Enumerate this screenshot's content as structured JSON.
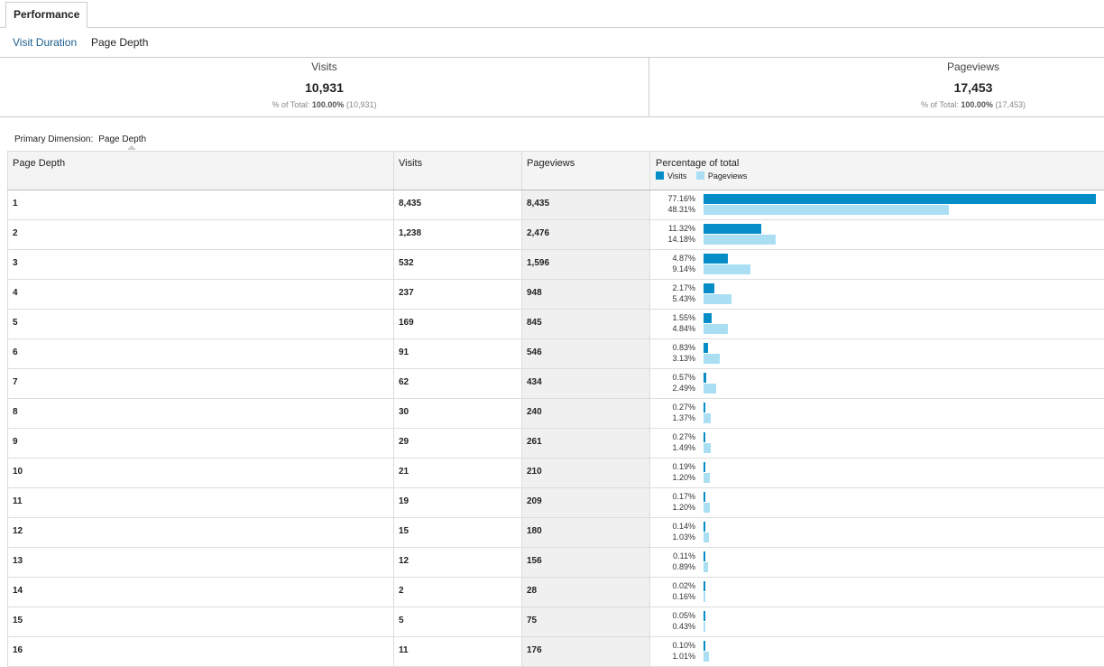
{
  "tab": {
    "label": "Performance"
  },
  "subnav": {
    "items": [
      "Visit Duration",
      "Page Depth"
    ]
  },
  "summary": [
    {
      "label": "Visits",
      "value": "10,931",
      "pct_prefix": "% of Total: ",
      "pct": "100.00%",
      "total": "(10,931)"
    },
    {
      "label": "Pageviews",
      "value": "17,453",
      "pct_prefix": "% of Total: ",
      "pct": "100.00%",
      "total": "(17,453)"
    }
  ],
  "primary_dimension": {
    "label": "Primary Dimension:",
    "value": "Page Depth"
  },
  "table": {
    "headers": [
      "Page Depth",
      "Visits",
      "Pageviews",
      "Percentage of total"
    ],
    "legend": [
      "Visits",
      "Pageviews"
    ],
    "colors": {
      "visits": "#058dc7",
      "pageviews": "#aadff3"
    },
    "rows": [
      {
        "depth": "1",
        "visits": "8,435",
        "pageviews": "8,435",
        "visits_pct": "77.16%",
        "pageviews_pct": "48.31%",
        "vp": 77.16,
        "pp": 48.31
      },
      {
        "depth": "2",
        "visits": "1,238",
        "pageviews": "2,476",
        "visits_pct": "11.32%",
        "pageviews_pct": "14.18%",
        "vp": 11.32,
        "pp": 14.18
      },
      {
        "depth": "3",
        "visits": "532",
        "pageviews": "1,596",
        "visits_pct": "4.87%",
        "pageviews_pct": "9.14%",
        "vp": 4.87,
        "pp": 9.14
      },
      {
        "depth": "4",
        "visits": "237",
        "pageviews": "948",
        "visits_pct": "2.17%",
        "pageviews_pct": "5.43%",
        "vp": 2.17,
        "pp": 5.43
      },
      {
        "depth": "5",
        "visits": "169",
        "pageviews": "845",
        "visits_pct": "1.55%",
        "pageviews_pct": "4.84%",
        "vp": 1.55,
        "pp": 4.84
      },
      {
        "depth": "6",
        "visits": "91",
        "pageviews": "546",
        "visits_pct": "0.83%",
        "pageviews_pct": "3.13%",
        "vp": 0.83,
        "pp": 3.13
      },
      {
        "depth": "7",
        "visits": "62",
        "pageviews": "434",
        "visits_pct": "0.57%",
        "pageviews_pct": "2.49%",
        "vp": 0.57,
        "pp": 2.49
      },
      {
        "depth": "8",
        "visits": "30",
        "pageviews": "240",
        "visits_pct": "0.27%",
        "pageviews_pct": "1.37%",
        "vp": 0.27,
        "pp": 1.37
      },
      {
        "depth": "9",
        "visits": "29",
        "pageviews": "261",
        "visits_pct": "0.27%",
        "pageviews_pct": "1.49%",
        "vp": 0.27,
        "pp": 1.49
      },
      {
        "depth": "10",
        "visits": "21",
        "pageviews": "210",
        "visits_pct": "0.19%",
        "pageviews_pct": "1.20%",
        "vp": 0.19,
        "pp": 1.2
      },
      {
        "depth": "11",
        "visits": "19",
        "pageviews": "209",
        "visits_pct": "0.17%",
        "pageviews_pct": "1.20%",
        "vp": 0.17,
        "pp": 1.2
      },
      {
        "depth": "12",
        "visits": "15",
        "pageviews": "180",
        "visits_pct": "0.14%",
        "pageviews_pct": "1.03%",
        "vp": 0.14,
        "pp": 1.03
      },
      {
        "depth": "13",
        "visits": "12",
        "pageviews": "156",
        "visits_pct": "0.11%",
        "pageviews_pct": "0.89%",
        "vp": 0.11,
        "pp": 0.89
      },
      {
        "depth": "14",
        "visits": "2",
        "pageviews": "28",
        "visits_pct": "0.02%",
        "pageviews_pct": "0.16%",
        "vp": 0.02,
        "pp": 0.16
      },
      {
        "depth": "15",
        "visits": "5",
        "pageviews": "75",
        "visits_pct": "0.05%",
        "pageviews_pct": "0.43%",
        "vp": 0.05,
        "pp": 0.43
      },
      {
        "depth": "16",
        "visits": "11",
        "pageviews": "176",
        "visits_pct": "0.10%",
        "pageviews_pct": "1.01%",
        "vp": 0.1,
        "pp": 1.01
      }
    ]
  }
}
